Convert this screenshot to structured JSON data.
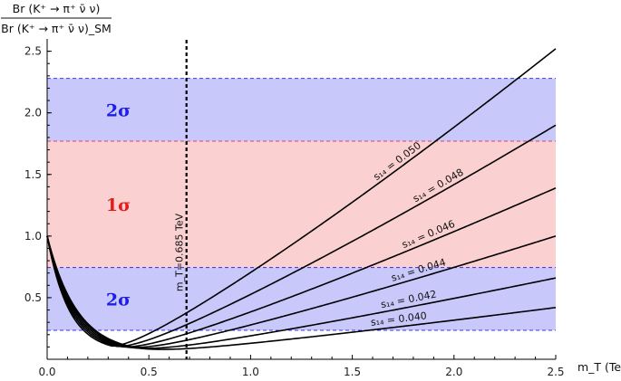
{
  "chart_data": {
    "type": "line",
    "xlabel": "m_T (TeV)",
    "ylabel": {
      "numerator": "Br (K⁺ → π⁺ ν̄ ν)",
      "denominator": "Br (K⁺ → π⁺ ν̄ ν)_SM"
    },
    "xlim": [
      0,
      2.5
    ],
    "ylim": [
      0,
      2.6
    ],
    "xticks": [
      0.0,
      0.5,
      1.0,
      1.5,
      2.0,
      2.5
    ],
    "xtick_labels": [
      "0.0",
      "0.5",
      "1.0",
      "1.5",
      "2.0",
      "2.5"
    ],
    "yticks": [
      0.5,
      1.0,
      1.5,
      2.0,
      2.5
    ],
    "ytick_labels": [
      "0.5",
      "1.0",
      "1.5",
      "2.0",
      "2.5"
    ],
    "bands": [
      {
        "label": "2σ",
        "y_range": [
          1.77,
          2.28
        ],
        "color": "#c8c8fa",
        "line_color": "#3a3af0",
        "label_color": "#1e1ee6"
      },
      {
        "label": "1σ",
        "y_range": [
          0.745,
          1.77
        ],
        "color": "#fad0d0",
        "line_color": "#e0406a",
        "label_color": "#e01e1e"
      },
      {
        "label": "2σ",
        "y_range": [
          0.235,
          0.745
        ],
        "color": "#c8c8fa",
        "line_color": "#3a3af0",
        "label_color": "#1e1ee6"
      }
    ],
    "vline": {
      "x": 0.685,
      "label": "m_T=0.685 TeV"
    },
    "series": [
      {
        "name": "s₁₄ = 0.050",
        "s14": 0.05,
        "end_value": 2.52
      },
      {
        "name": "s₁₄ = 0.048",
        "s14": 0.048,
        "end_value": 1.9
      },
      {
        "name": "s₁₄ = 0.046",
        "s14": 0.046,
        "end_value": 1.39
      },
      {
        "name": "s₁₄ = 0.044",
        "s14": 0.044,
        "end_value": 1.0
      },
      {
        "name": "s₁₄ = 0.042",
        "s14": 0.042,
        "end_value": 0.66
      },
      {
        "name": "s₁₄ = 0.040",
        "s14": 0.04,
        "end_value": 0.42
      }
    ],
    "curve_start": {
      "x": 0,
      "y": 1.0
    },
    "grid": false,
    "legend": "none"
  }
}
